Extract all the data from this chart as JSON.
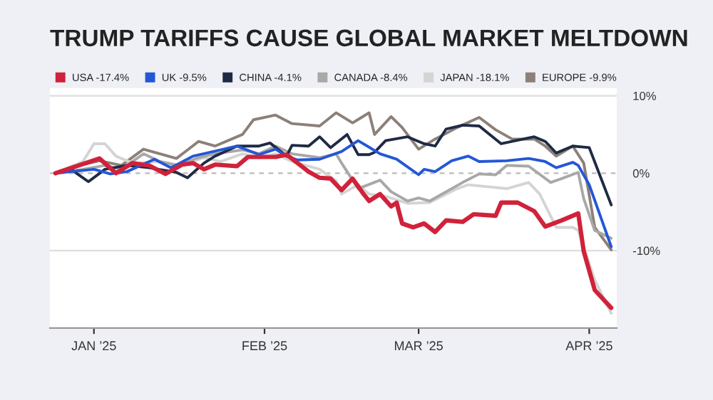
{
  "chart_data": {
    "type": "line",
    "title": "TRUMP TARIFFS CAUSE GLOBAL MARKET MELTDOWN",
    "xlim": [
      "2024-12-24",
      "2025-04-06"
    ],
    "xticks": [
      {
        "value": "2025-01-01",
        "label": "JAN ’25"
      },
      {
        "value": "2025-02-01",
        "label": "FEB ’25"
      },
      {
        "value": "2025-03-01",
        "label": "MAR ’25"
      },
      {
        "value": "2025-04-01",
        "label": "APR ’25"
      }
    ],
    "ylim": [
      -20,
      11
    ],
    "yticks": [
      {
        "value": 10,
        "label": "10%"
      },
      {
        "value": 0,
        "label": "0%"
      },
      {
        "value": -10,
        "label": "-10%"
      }
    ],
    "grid": "y",
    "legend": "top left",
    "ref_lines": [
      {
        "axis": "y",
        "value": 0,
        "color": "#bbbbbb",
        "line_style": "dashed"
      }
    ],
    "series": [
      {
        "name": "USA -17.4%",
        "color": "#d0223a",
        "x": [
          "2024-12-25",
          "2025-01-02",
          "2025-01-05",
          "2025-01-08",
          "2025-01-11",
          "2025-01-14",
          "2025-01-17",
          "2025-01-19",
          "2025-01-21",
          "2025-01-23",
          "2025-01-27",
          "2025-01-29",
          "2025-02-03",
          "2025-02-05",
          "2025-02-09",
          "2025-02-11",
          "2025-02-13",
          "2025-02-15",
          "2025-02-17",
          "2025-02-19",
          "2025-02-20",
          "2025-02-22",
          "2025-02-24",
          "2025-02-25",
          "2025-02-26",
          "2025-02-28",
          "2025-03-02",
          "2025-03-04",
          "2025-03-06",
          "2025-03-09",
          "2025-03-11",
          "2025-03-15",
          "2025-03-16",
          "2025-03-19",
          "2025-03-22",
          "2025-03-24",
          "2025-03-27",
          "2025-03-30",
          "2025-03-31",
          "2025-04-02",
          "2025-04-05"
        ],
        "values": [
          0,
          1.9,
          0,
          1.3,
          1,
          -0.1,
          1.1,
          1.3,
          0.5,
          1.1,
          0.9,
          2.1,
          2.1,
          2.4,
          0.2,
          -0.6,
          -0.7,
          -2.2,
          -0.7,
          -2.7,
          -3.6,
          -2.7,
          -4.3,
          -3.8,
          -6.5,
          -7,
          -6.5,
          -7.6,
          -6.1,
          -6.3,
          -5.3,
          -5.5,
          -3.8,
          -3.8,
          -4.9,
          -6.9,
          -6.1,
          -5.2,
          -10.1,
          -15.1,
          -17.4
        ]
      },
      {
        "name": "UK -9.5%",
        "color": "#2457d6",
        "x": [
          "2024-12-25",
          "2025-01-01",
          "2025-01-04",
          "2025-01-07",
          "2025-01-12",
          "2025-01-15",
          "2025-01-19",
          "2025-01-24",
          "2025-01-27",
          "2025-01-31",
          "2025-02-03",
          "2025-02-05",
          "2025-02-07",
          "2025-02-11",
          "2025-02-15",
          "2025-02-18",
          "2025-02-22",
          "2025-02-25",
          "2025-03-01",
          "2025-03-02",
          "2025-03-04",
          "2025-03-07",
          "2025-03-10",
          "2025-03-12",
          "2025-03-17",
          "2025-03-21",
          "2025-03-24",
          "2025-03-26",
          "2025-03-29",
          "2025-03-30",
          "2025-04-01",
          "2025-04-03",
          "2025-04-05"
        ],
        "values": [
          0,
          0.5,
          -0.1,
          0.2,
          1.8,
          0.7,
          2.2,
          3,
          3.5,
          2.4,
          3.1,
          2.2,
          1.7,
          1.8,
          2.8,
          4.2,
          2.5,
          1.8,
          -0.2,
          0.5,
          0.2,
          1.6,
          2.2,
          1.5,
          1.6,
          1.9,
          1.5,
          0.7,
          1.4,
          1,
          -1.5,
          -5.5,
          -9.5
        ]
      },
      {
        "name": "CHINA -4.1%",
        "color": "#1f2a44",
        "x": [
          "2024-12-25",
          "2024-12-28",
          "2024-12-31",
          "2025-01-03",
          "2025-01-07",
          "2025-01-11",
          "2025-01-16",
          "2025-01-18",
          "2025-01-21",
          "2025-01-23",
          "2025-01-27",
          "2025-01-31",
          "2025-02-02",
          "2025-02-05",
          "2025-02-06",
          "2025-02-09",
          "2025-02-11",
          "2025-02-13",
          "2025-02-16",
          "2025-02-18",
          "2025-02-20",
          "2025-02-21",
          "2025-02-23",
          "2025-02-27",
          "2025-03-02",
          "2025-03-04",
          "2025-03-06",
          "2025-03-09",
          "2025-03-12",
          "2025-03-16",
          "2025-03-18",
          "2025-03-22",
          "2025-03-24",
          "2025-03-26",
          "2025-03-29",
          "2025-04-01",
          "2025-04-05"
        ],
        "values": [
          0,
          0.4,
          -1.1,
          0.5,
          1,
          0.7,
          0.1,
          -0.6,
          1.3,
          2.2,
          3.5,
          3.5,
          3.9,
          2.2,
          3.6,
          3.5,
          4.7,
          3.3,
          5,
          2.4,
          2.4,
          2.7,
          4.2,
          4.7,
          3.8,
          3.5,
          5.7,
          6.2,
          6.1,
          3.8,
          4.1,
          4.7,
          4.1,
          2.6,
          3.5,
          3.3,
          -4.1
        ]
      },
      {
        "name": "CANADA -8.4%",
        "color": "#a8a8a8",
        "x": [
          "2024-12-25",
          "2024-12-30",
          "2025-01-03",
          "2025-01-06",
          "2025-01-10",
          "2025-01-13",
          "2025-01-16",
          "2025-01-20",
          "2025-01-23",
          "2025-01-28",
          "2025-01-31",
          "2025-02-03",
          "2025-02-06",
          "2025-02-11",
          "2025-02-14",
          "2025-02-15",
          "2025-02-18",
          "2025-02-22",
          "2025-02-24",
          "2025-02-27",
          "2025-03-01",
          "2025-03-03",
          "2025-03-09",
          "2025-03-12",
          "2025-03-15",
          "2025-03-17",
          "2025-03-21",
          "2025-03-25",
          "2025-03-27",
          "2025-03-30",
          "2025-03-31",
          "2025-04-02",
          "2025-04-05"
        ],
        "values": [
          0,
          0.5,
          1,
          0.5,
          2.5,
          1.5,
          1,
          2,
          2.5,
          3,
          2.5,
          3.5,
          2.5,
          2,
          2.5,
          1.3,
          -2,
          -0.9,
          -2.4,
          -3.6,
          -3.2,
          -3.6,
          -1.2,
          -0.1,
          -0.2,
          1,
          0.9,
          -1.2,
          -0.7,
          0.1,
          -3.3,
          -7.4,
          -8.4
        ]
      },
      {
        "name": "JAPAN -18.1%",
        "color": "#d4d4d4",
        "x": [
          "2024-12-25",
          "2024-12-30",
          "2025-01-01",
          "2025-01-03",
          "2025-01-05",
          "2025-01-08",
          "2025-01-13",
          "2025-01-17",
          "2025-01-21",
          "2025-01-24",
          "2025-01-28",
          "2025-01-31",
          "2025-02-03",
          "2025-02-06",
          "2025-02-11",
          "2025-02-14",
          "2025-02-15",
          "2025-02-18",
          "2025-02-20",
          "2025-02-23",
          "2025-02-27",
          "2025-03-03",
          "2025-03-08",
          "2025-03-10",
          "2025-03-17",
          "2025-03-21",
          "2025-03-23",
          "2025-03-26",
          "2025-03-29",
          "2025-03-30",
          "2025-04-02",
          "2025-04-05"
        ],
        "values": [
          0,
          1.5,
          3.8,
          3.8,
          2.2,
          1.3,
          1.5,
          1,
          2,
          1.5,
          2.5,
          2,
          2.5,
          1.5,
          0.5,
          -1,
          -2.7,
          -1.5,
          -2.7,
          -3,
          -3.9,
          -3.8,
          -2,
          -1.5,
          -2,
          -1.2,
          -2.7,
          -7,
          -7,
          -7.4,
          -13.8,
          -18.1
        ]
      },
      {
        "name": "EUROPE -9.9%",
        "color": "#8c8079",
        "x": [
          "2024-12-25",
          "2024-12-30",
          "2025-01-02",
          "2025-01-06",
          "2025-01-10",
          "2025-01-13",
          "2025-01-16",
          "2025-01-20",
          "2025-01-23",
          "2025-01-28",
          "2025-01-30",
          "2025-02-03",
          "2025-02-06",
          "2025-02-11",
          "2025-02-14",
          "2025-02-17",
          "2025-02-20",
          "2025-02-21",
          "2025-02-24",
          "2025-02-26",
          "2025-03-01",
          "2025-03-04",
          "2025-03-08",
          "2025-03-12",
          "2025-03-15",
          "2025-03-18",
          "2025-03-22",
          "2025-03-24",
          "2025-03-26",
          "2025-03-29",
          "2025-03-31",
          "2025-04-02",
          "2025-04-05"
        ],
        "values": [
          0,
          1.1,
          1.6,
          1,
          3.1,
          2.5,
          1.9,
          4.1,
          3.5,
          5,
          6.9,
          7.5,
          6.4,
          6.1,
          7.8,
          6.5,
          7.8,
          5,
          7.3,
          5.9,
          3.1,
          4.4,
          5.9,
          7.2,
          5.6,
          4.4,
          4.4,
          3.5,
          2.2,
          3.5,
          1.3,
          -7,
          -9.9
        ]
      }
    ]
  }
}
